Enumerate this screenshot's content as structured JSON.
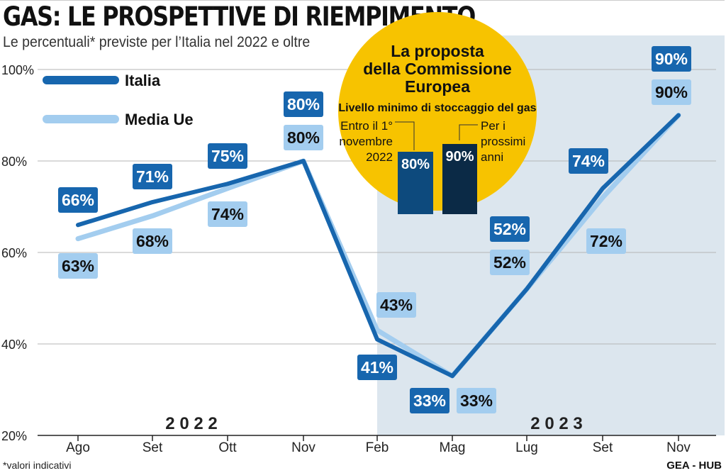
{
  "title": "GAS: LE PROSPETTIVE DI RIEMPIMENTO",
  "subtitle": "Le percentuali* previste per l’Italia nel 2022 e oltre",
  "footnote": "*valori indicativi",
  "source": "GEA - HUB",
  "colors": {
    "italia": "#1766ae",
    "media_ue": "#a3cdef",
    "shade": "#dce6ee",
    "inset_bg": "#f7c300",
    "bar_dark": "#0b2a46",
    "bar_mid": "#0d4a7d"
  },
  "chart_data": {
    "type": "line",
    "x": [
      "Ago",
      "Set",
      "Ott",
      "Nov",
      "Feb",
      "Mag",
      "Lug",
      "Set",
      "Nov"
    ],
    "ylim": [
      20,
      100
    ],
    "yticks": [
      "20%",
      "40%",
      "60%",
      "80%",
      "100%"
    ],
    "series": [
      {
        "name": "Italia",
        "values": [
          66,
          71,
          75,
          80,
          41,
          33,
          52,
          74,
          90
        ],
        "labels": [
          "66%",
          "71%",
          "75%",
          "80%",
          "41%",
          "33%",
          "52%",
          "74%",
          "90%"
        ]
      },
      {
        "name": "Media Ue",
        "values": [
          63,
          68,
          74,
          80,
          43,
          33,
          52,
          72,
          90
        ],
        "labels": [
          "63%",
          "68%",
          "74%",
          "80%",
          "43%",
          "33%",
          "52%",
          "72%",
          "90%"
        ]
      }
    ],
    "period_labels": [
      "2 0 2 2",
      "2 0 2 3"
    ],
    "inset": {
      "title_lines": [
        "La proposta",
        "della Commissione",
        "Europea"
      ],
      "subtitle": "Livello minimo di stoccaggio del gas",
      "bars": [
        {
          "desc_lines": [
            "Entro il 1°",
            "novembre",
            "2022"
          ],
          "value": 80,
          "label": "80%"
        },
        {
          "desc_lines": [
            "Per i",
            "prossimi",
            "anni"
          ],
          "value": 90,
          "label": "90%"
        }
      ]
    }
  }
}
